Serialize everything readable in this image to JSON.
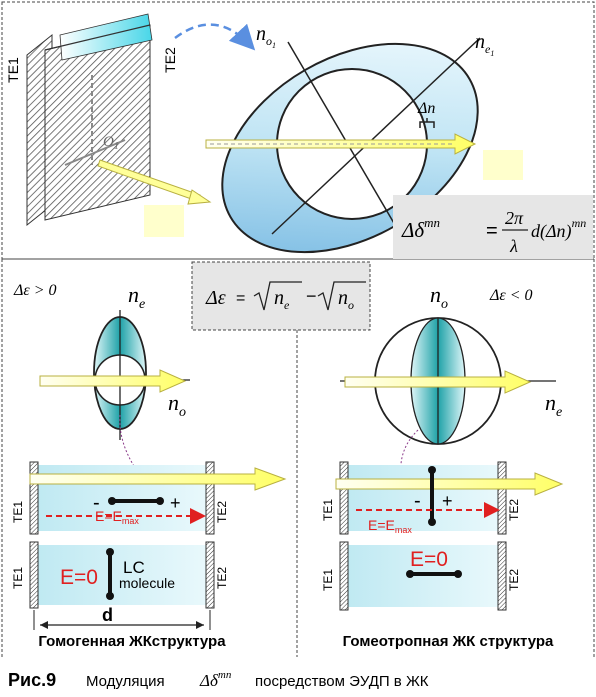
{
  "top": {
    "plate_labels": [
      "TE1",
      "TE2"
    ],
    "axis_label": "O",
    "axis_sub": "1",
    "ellipse_axis_labels": {
      "n_o1": {
        "base": "n",
        "sub": "o",
        "subsub": "1"
      },
      "n_e1": {
        "base": "n",
        "sub": "e",
        "subsub": "1"
      }
    },
    "delta_n": "Δn",
    "formula": {
      "lhs": "Δδ",
      "lhs_sup": "mn",
      "eq": "=",
      "numerator": "2π",
      "denominator": "λ",
      "rhs": "d(Δn)",
      "rhs_sup": "mn"
    }
  },
  "middle_formula": {
    "lhs": "Δε",
    "eq": "=",
    "term1": "n",
    "term1_sub": "e",
    "minus": "−",
    "term2": "n",
    "term2_sub": "o"
  },
  "left_panel": {
    "condition": "Δε > 0",
    "ne": {
      "base": "n",
      "sub": "e"
    },
    "no": {
      "base": "n",
      "sub": "o"
    },
    "cell_labels": [
      "TE1",
      "TE2"
    ],
    "minus": "-",
    "plus": "+",
    "field_max": "E=E",
    "field_max_sub": "max",
    "field_zero": "E=0",
    "lc": "LC",
    "molecule": "molecule",
    "thickness": "d",
    "title": "Гомогенная ЖКструктура"
  },
  "right_panel": {
    "condition": "Δε < 0",
    "no": {
      "base": "n",
      "sub": "o"
    },
    "ne": {
      "base": "n",
      "sub": "e"
    },
    "cell_labels": [
      "TE1",
      "TE2"
    ],
    "minus": "-",
    "plus": "+",
    "field_max": "E=E",
    "field_max_sub": "max",
    "field_zero": "E=0",
    "title": "Гомеотропная ЖК структура"
  },
  "caption": {
    "label": "Рис.9",
    "text_before": "Модуляция",
    "symbol": "Δδ",
    "symbol_sup": "mn",
    "text_after": "посредством ЭУДП  в ЖК"
  },
  "colors": {
    "light_blue": "#cdeef5",
    "mid_blue": "#8fcbe6",
    "teal": "#2aa3a8",
    "arrow_fill": "#ffff99",
    "arrow_stroke": "#b8b040",
    "red": "#e02020",
    "dashed_blue": "#5a8fe0",
    "formula_bg": "#e6e6e6",
    "yellow_box": "#ffffcc"
  }
}
